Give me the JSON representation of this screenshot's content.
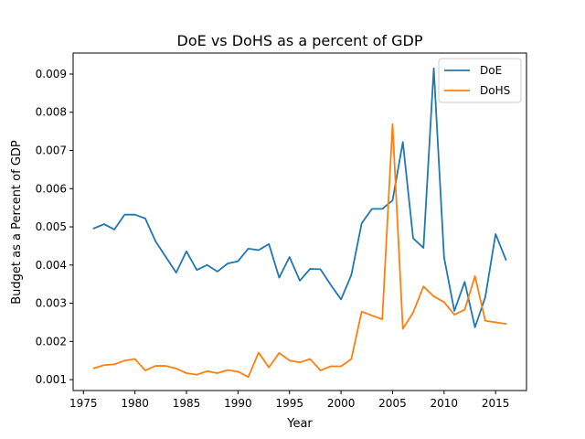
{
  "chart_data": {
    "type": "line",
    "title": "DoE vs DoHS as a percent of GDP",
    "xlabel": "Year",
    "ylabel": "Budget as a Percent of GDP",
    "xlim": [
      1974,
      2018
    ],
    "ylim": [
      0.000715,
      0.00955
    ],
    "x_ticks": [
      1975,
      1980,
      1985,
      1990,
      1995,
      2000,
      2005,
      2010,
      2015
    ],
    "x_tick_labels": [
      "1975",
      "1980",
      "1985",
      "1990",
      "1995",
      "2000",
      "2005",
      "2010",
      "2015"
    ],
    "y_ticks": [
      0.001,
      0.002,
      0.003,
      0.004,
      0.005,
      0.006,
      0.007,
      0.008,
      0.009
    ],
    "y_tick_labels": [
      "0.001",
      "0.002",
      "0.003",
      "0.004",
      "0.005",
      "0.006",
      "0.007",
      "0.008",
      "0.009"
    ],
    "grid": false,
    "legend_position": "top-right",
    "x": [
      1976,
      1977,
      1978,
      1979,
      1980,
      1981,
      1982,
      1983,
      1984,
      1985,
      1986,
      1987,
      1988,
      1989,
      1990,
      1991,
      1992,
      1993,
      1994,
      1995,
      1996,
      1997,
      1998,
      1999,
      2000,
      2001,
      2002,
      2003,
      2004,
      2005,
      2006,
      2007,
      2008,
      2009,
      2010,
      2011,
      2012,
      2013,
      2014,
      2015,
      2016
    ],
    "series": [
      {
        "name": "DoE",
        "color": "#1f77b4",
        "values": [
          0.00496,
          0.00507,
          0.00493,
          0.00532,
          0.00532,
          0.00522,
          0.00462,
          0.00421,
          0.0038,
          0.00436,
          0.00387,
          0.004,
          0.00383,
          0.00404,
          0.0041,
          0.00443,
          0.00439,
          0.00455,
          0.00367,
          0.00421,
          0.00359,
          0.0039,
          0.00389,
          0.00348,
          0.0031,
          0.00374,
          0.00509,
          0.00547,
          0.00547,
          0.00569,
          0.00722,
          0.0047,
          0.00445,
          0.00915,
          0.0042,
          0.0028,
          0.00356,
          0.00237,
          0.00316,
          0.00481,
          0.00414
        ]
      },
      {
        "name": "DoHS",
        "color": "#ff7f0e",
        "values": [
          0.0013,
          0.00138,
          0.0014,
          0.0015,
          0.00154,
          0.00124,
          0.00136,
          0.00136,
          0.00129,
          0.00117,
          0.00113,
          0.00122,
          0.00117,
          0.00125,
          0.00121,
          0.00107,
          0.00171,
          0.00132,
          0.0017,
          0.0015,
          0.00145,
          0.00154,
          0.00124,
          0.00135,
          0.00135,
          0.00154,
          0.00278,
          0.00268,
          0.00258,
          0.00769,
          0.00233,
          0.00276,
          0.00344,
          0.00318,
          0.00303,
          0.0027,
          0.00283,
          0.00371,
          0.00254,
          0.0025,
          0.00246
        ]
      }
    ]
  }
}
